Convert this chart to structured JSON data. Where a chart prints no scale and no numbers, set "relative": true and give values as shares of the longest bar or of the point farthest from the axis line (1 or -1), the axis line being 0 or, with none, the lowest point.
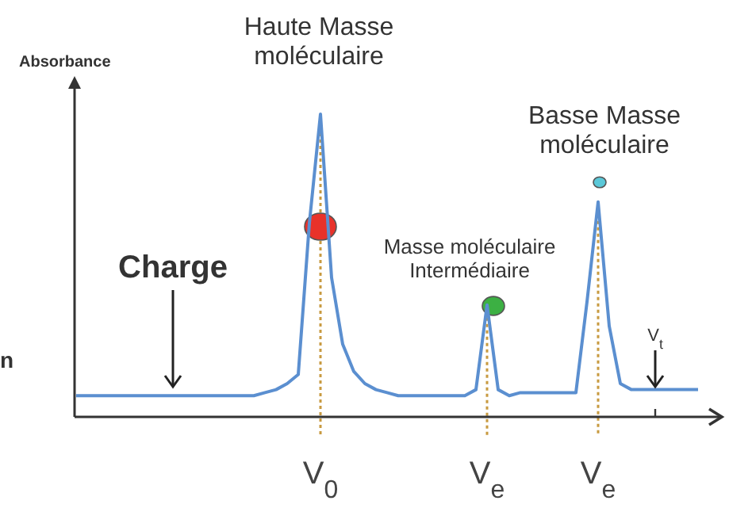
{
  "chart_data": {
    "type": "line",
    "relative": true,
    "ylabel": "Absorbance",
    "grid": "x",
    "legend": false,
    "line_style": "solid",
    "categories": [
      null,
      null,
      null,
      null,
      null,
      null,
      null,
      null,
      null,
      null,
      null,
      null,
      null,
      null,
      null,
      null,
      null,
      null,
      null,
      null,
      null,
      null,
      "V$_{0}$",
      null,
      null,
      null,
      null,
      null,
      null,
      null,
      null,
      null,
      null,
      null,
      null,
      null,
      null,
      "V$_{e}$",
      null,
      null,
      null,
      null,
      null,
      null,
      null,
      null,
      null,
      "V$_{e}$",
      null,
      null,
      null,
      null,
      null,
      null,
      null,
      null,
      null
    ],
    "series": [
      {
        "color": "#5b8fd0",
        "values": [
          0.07,
          0.07,
          0.07,
          0.07,
          0.07,
          0.07,
          0.07,
          0.07,
          0.07,
          0.07,
          0.07,
          0.07,
          0.07,
          0.07,
          0.07,
          0.07,
          0.07,
          0.08,
          0.09,
          0.11,
          0.14,
          0.64,
          1,
          0.46,
          0.24,
          0.15,
          0.11,
          0.09,
          0.08,
          0.07,
          0.07,
          0.07,
          0.07,
          0.07,
          0.07,
          0.07,
          0.09,
          0.37,
          0.09,
          0.07,
          0.08,
          0.08,
          0.08,
          0.08,
          0.08,
          0.08,
          0.38,
          0.71,
          0.3,
          0.11,
          0.09,
          0.09,
          0.09,
          0.09,
          0.09,
          0.09,
          0.09
        ]
      }
    ],
    "annotations": [
      "Haute Masse\nmoléculaire",
      "Masse moléculaire\nIntermédiaire",
      "Basse Masse\nmoléculaire",
      "Charge",
      "V$_{t}$",
      "n"
    ]
  }
}
